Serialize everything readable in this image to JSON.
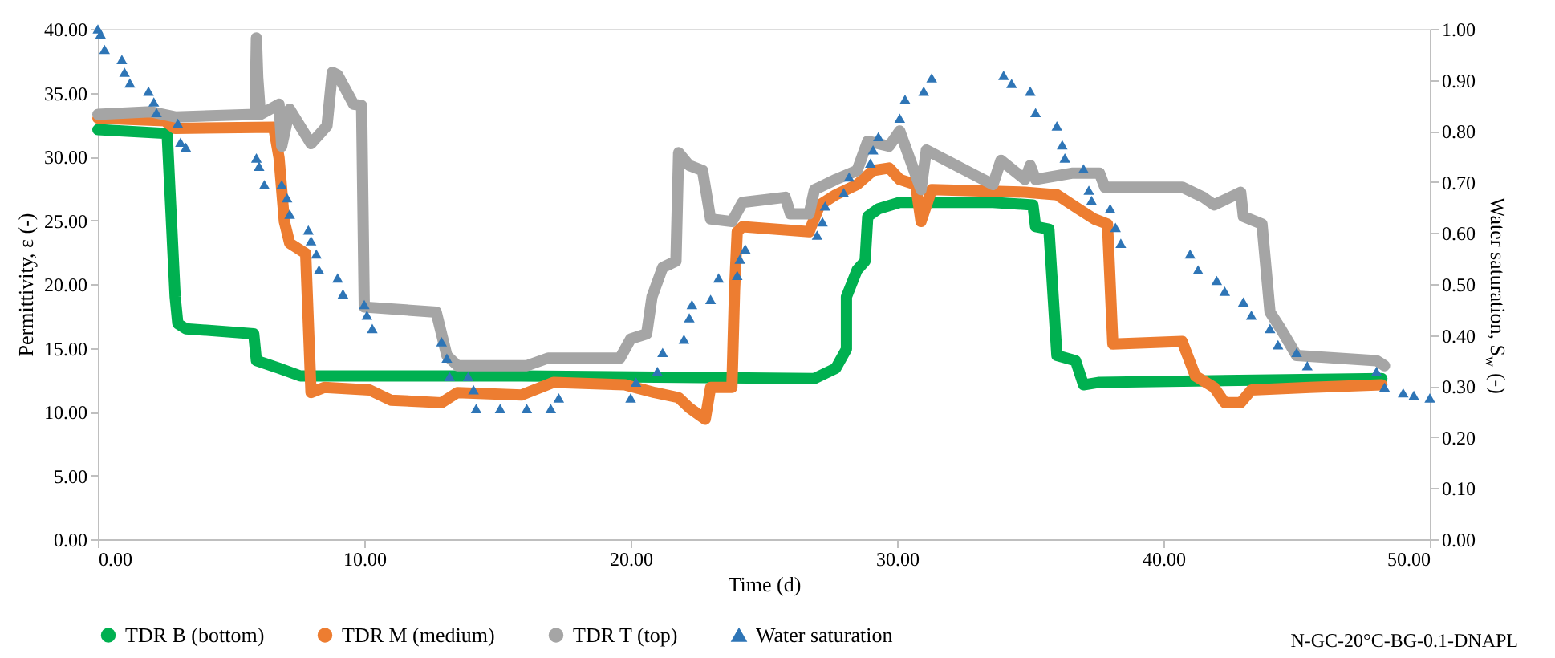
{
  "chart_data": {
    "type": "line",
    "xlabel": "Time (d)",
    "ylabel": "Permittivity, ε (-)",
    "y2label": "Water saturation, S$_{w}$ (-)",
    "xlim": [
      0,
      50
    ],
    "xticks": [
      {
        "value": 0,
        "label": "0.00"
      },
      {
        "value": 10,
        "label": "10.00"
      },
      {
        "value": 20,
        "label": "20.00"
      },
      {
        "value": 30,
        "label": "30.00"
      },
      {
        "value": 40,
        "label": "40.00"
      },
      {
        "value": 50,
        "label": "50.00"
      }
    ],
    "ylim": [
      0,
      40
    ],
    "yticks": [
      {
        "value": 0,
        "label": "0.00"
      },
      {
        "value": 5,
        "label": "5.00"
      },
      {
        "value": 10,
        "label": "10.00"
      },
      {
        "value": 15,
        "label": "15.00"
      },
      {
        "value": 20,
        "label": "20.00"
      },
      {
        "value": 25,
        "label": "25.00"
      },
      {
        "value": 30,
        "label": "30.00"
      },
      {
        "value": 35,
        "label": "35.00"
      },
      {
        "value": 40,
        "label": "40.00"
      }
    ],
    "y2lim": [
      0,
      1
    ],
    "y2ticks": [
      {
        "value": 0,
        "label": "0.00"
      },
      {
        "value": 0.1,
        "label": "0.10"
      },
      {
        "value": 0.2,
        "label": "0.20"
      },
      {
        "value": 0.3,
        "label": "0.30"
      },
      {
        "value": 0.4,
        "label": "0.40"
      },
      {
        "value": 0.5,
        "label": "0.50"
      },
      {
        "value": 0.6,
        "label": "0.60"
      },
      {
        "value": 0.7,
        "label": "0.70"
      },
      {
        "value": 0.8,
        "label": "0.80"
      },
      {
        "value": 0.9,
        "label": "0.90"
      },
      {
        "value": 1,
        "label": "1.00"
      }
    ],
    "grid": false,
    "legend": "bottom",
    "line_style": "solid",
    "annotations": [
      "N-GC-20°C-BG-0.1-DNAPL"
    ],
    "series": [
      {
        "name": "TDR B (bottom)",
        "color": "#00b050",
        "x": [
          0,
          2.6,
          2.9,
          3.0,
          3.3,
          5.85,
          5.95,
          6.8,
          7.6,
          15.9,
          26.9,
          27.7,
          28.1,
          28.1,
          28.5,
          28.8,
          28.9,
          29.3,
          30.1,
          30.9,
          33.6,
          35.1,
          35.2,
          35.7,
          36.0,
          36.7,
          37.0,
          37.6,
          48.2
        ],
        "values": [
          32.1,
          31.8,
          19.0,
          16.9,
          16.5,
          16.1,
          14.0,
          13.4,
          12.8,
          12.8,
          12.6,
          13.4,
          14.9,
          19.0,
          21.1,
          21.8,
          25.3,
          25.9,
          26.4,
          26.4,
          26.4,
          26.2,
          24.5,
          24.3,
          14.4,
          14.0,
          12.1,
          12.3,
          12.6
        ]
      },
      {
        "name": "TDR M (medium)",
        "color": "#ed7d31",
        "x": [
          0,
          2.5,
          2.9,
          6.6,
          6.8,
          7.0,
          7.2,
          7.8,
          8.0,
          8.5,
          10.2,
          11.0,
          12.9,
          13.5,
          15.9,
          17.1,
          19.8,
          20.9,
          21.8,
          22.2,
          22.8,
          23.0,
          23.8,
          23.9,
          24.0,
          24.2,
          26.7,
          27.1,
          27.7,
          28.5,
          29.1,
          29.7,
          30.1,
          30.7,
          30.9,
          31.3,
          34.8,
          36.0,
          36.8,
          37.4,
          37.9,
          38.1,
          40.7,
          41.2,
          41.9,
          42.3,
          42.9,
          43.3,
          45.5,
          48.2
        ],
        "values": [
          33.0,
          32.8,
          32.2,
          32.3,
          29.9,
          24.9,
          23.2,
          22.4,
          11.5,
          11.9,
          11.7,
          10.9,
          10.7,
          11.5,
          11.3,
          12.3,
          12.1,
          11.5,
          11.1,
          10.3,
          9.4,
          11.9,
          11.9,
          19.5,
          24.1,
          24.5,
          24.1,
          26.2,
          27.0,
          27.8,
          28.9,
          29.1,
          28.2,
          27.8,
          24.9,
          27.4,
          27.2,
          27.0,
          25.9,
          25.1,
          24.7,
          15.3,
          15.5,
          12.8,
          11.9,
          10.7,
          10.7,
          11.7,
          11.9,
          12.1
        ]
      },
      {
        "name": "TDR T (top)",
        "color": "#a5a5a5",
        "x": [
          0,
          2.0,
          2.9,
          5.9,
          5.95,
          6.0,
          6.1,
          6.8,
          6.9,
          7.2,
          8.0,
          8.6,
          8.8,
          9.0,
          9.6,
          9.9,
          10.0,
          12.7,
          13.1,
          13.5,
          16.1,
          16.9,
          19.6,
          20.0,
          20.6,
          20.8,
          21.2,
          21.7,
          21.8,
          22.2,
          22.7,
          23.0,
          23.8,
          24.2,
          25.8,
          26.0,
          26.7,
          26.9,
          27.7,
          28.5,
          28.9,
          29.7,
          30.1,
          30.5,
          30.9,
          31.1,
          33.6,
          33.9,
          34.8,
          35.0,
          35.2,
          36.6,
          37.6,
          37.8,
          40.7,
          41.5,
          41.9,
          42.9,
          43.0,
          43.7,
          44.0,
          44.4,
          45.0,
          48.0,
          48.3
        ],
        "values": [
          33.3,
          33.5,
          33.1,
          33.3,
          39.3,
          36.2,
          33.3,
          34.1,
          30.8,
          33.7,
          31.0,
          32.4,
          36.6,
          36.4,
          34.1,
          34.0,
          18.2,
          17.8,
          14.4,
          13.6,
          13.6,
          14.2,
          14.2,
          15.7,
          16.1,
          19.0,
          21.3,
          21.8,
          30.3,
          29.3,
          28.9,
          25.1,
          24.9,
          26.4,
          26.8,
          25.5,
          25.5,
          27.4,
          28.2,
          28.9,
          31.2,
          30.8,
          32.0,
          29.7,
          27.4,
          30.5,
          27.8,
          29.7,
          28.2,
          29.3,
          28.2,
          28.7,
          28.7,
          27.6,
          27.6,
          26.8,
          26.2,
          27.2,
          25.3,
          24.7,
          17.8,
          16.5,
          14.4,
          14.0,
          13.6
        ]
      },
      {
        "name": "Water saturation",
        "color": "#2e75b6",
        "type": "scatter",
        "marker": "triangle",
        "axis": "y2",
        "x": [
          0,
          0.1,
          0.25,
          0.9,
          1.0,
          1.2,
          1.9,
          2.1,
          2.2,
          3.0,
          3.1,
          3.3,
          5.95,
          6.05,
          6.25,
          6.9,
          7.1,
          7.2,
          7.9,
          8.0,
          8.2,
          8.3,
          9.0,
          9.2,
          10.0,
          10.1,
          10.3,
          12.9,
          13.1,
          13.2,
          13.9,
          14.1,
          14.2,
          15.1,
          16.1,
          17.0,
          17.3,
          20.0,
          20.2,
          21.0,
          21.2,
          22.0,
          22.2,
          22.3,
          23.0,
          23.3,
          24.0,
          24.1,
          24.3,
          27.0,
          27.2,
          27.3,
          28.0,
          28.2,
          29.0,
          29.1,
          29.3,
          30.1,
          30.3,
          31.0,
          31.3,
          34.0,
          34.3,
          35.0,
          35.2,
          36.0,
          36.2,
          36.3,
          37.0,
          37.2,
          37.3,
          38.0,
          38.2,
          38.4,
          41.0,
          41.3,
          42.0,
          42.3,
          43.0,
          43.3,
          44.0,
          44.3,
          45.0,
          45.4,
          48.0,
          48.3,
          49.0,
          49.4,
          50.0
        ],
        "values": [
          1.0,
          0.99,
          0.96,
          0.94,
          0.915,
          0.894,
          0.878,
          0.857,
          0.836,
          0.815,
          0.778,
          0.768,
          0.747,
          0.731,
          0.695,
          0.695,
          0.669,
          0.637,
          0.606,
          0.585,
          0.559,
          0.528,
          0.512,
          0.481,
          0.46,
          0.439,
          0.413,
          0.387,
          0.355,
          0.319,
          0.319,
          0.293,
          0.256,
          0.256,
          0.256,
          0.256,
          0.277,
          0.277,
          0.308,
          0.329,
          0.366,
          0.392,
          0.434,
          0.46,
          0.47,
          0.512,
          0.517,
          0.549,
          0.569,
          0.596,
          0.622,
          0.653,
          0.679,
          0.71,
          0.737,
          0.763,
          0.789,
          0.825,
          0.862,
          0.878,
          0.904,
          0.909,
          0.893,
          0.878,
          0.836,
          0.81,
          0.773,
          0.747,
          0.726,
          0.684,
          0.664,
          0.648,
          0.611,
          0.58,
          0.559,
          0.528,
          0.507,
          0.486,
          0.465,
          0.439,
          0.413,
          0.381,
          0.366,
          0.34,
          0.329,
          0.298,
          0.287,
          0.282,
          0.277
        ]
      }
    ]
  }
}
